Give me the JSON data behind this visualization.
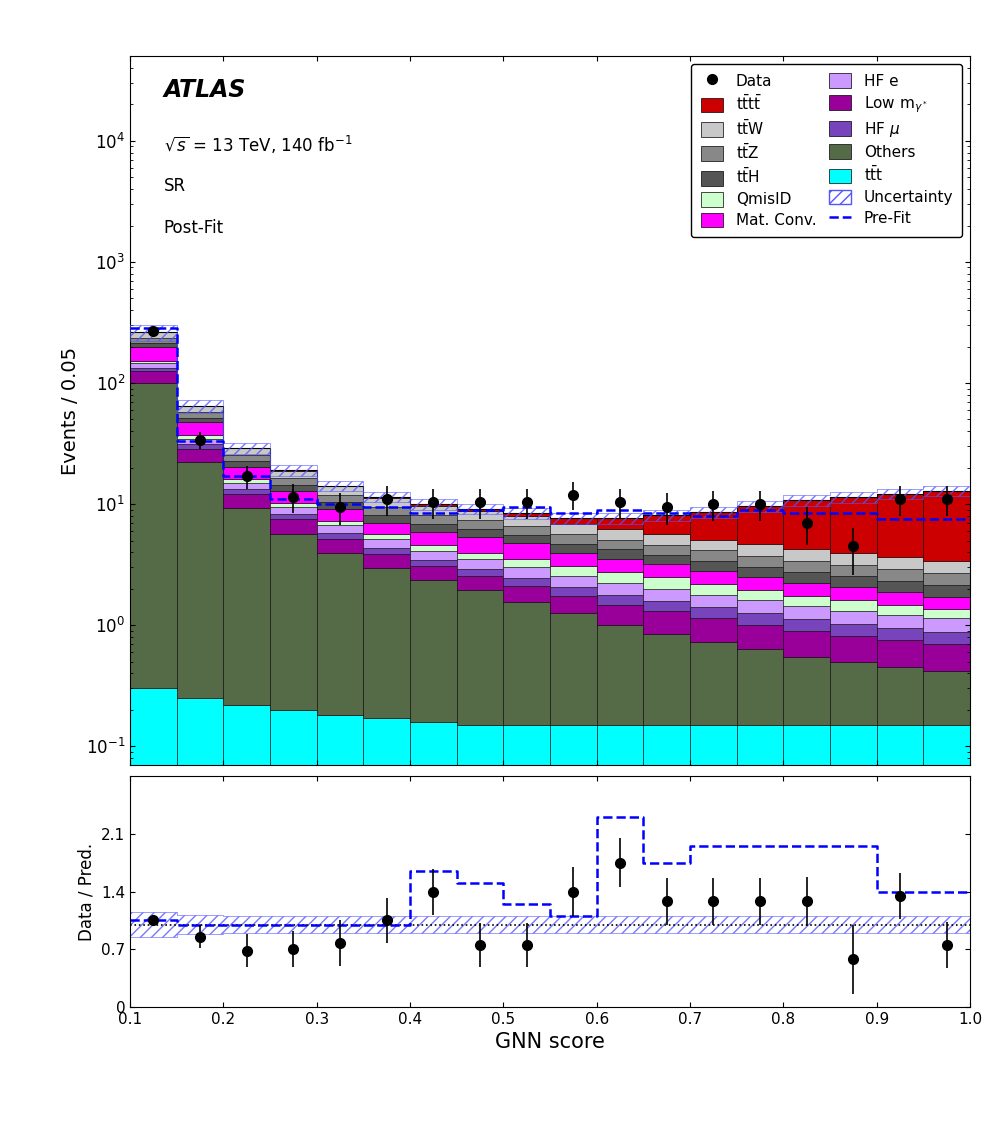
{
  "bin_edges": [
    0.1,
    0.15,
    0.2,
    0.25,
    0.3,
    0.35,
    0.4,
    0.45,
    0.5,
    0.55,
    0.6,
    0.65,
    0.7,
    0.75,
    0.8,
    0.85,
    0.9,
    0.95,
    1.0
  ],
  "components": {
    "tttt": [
      0.3,
      0.25,
      0.2,
      0.18,
      0.18,
      0.2,
      0.3,
      0.4,
      0.5,
      0.8,
      1.5,
      2.5,
      3.5,
      5.0,
      6.5,
      7.5,
      8.5,
      9.5
    ],
    "ttW": [
      30,
      7.0,
      3.5,
      2.5,
      2.0,
      1.8,
      1.6,
      1.4,
      1.3,
      1.2,
      1.1,
      1.0,
      0.95,
      0.9,
      0.85,
      0.8,
      0.75,
      0.7
    ],
    "ttZ": [
      20,
      5.5,
      2.8,
      2.0,
      1.6,
      1.4,
      1.2,
      1.1,
      1.0,
      0.9,
      0.85,
      0.8,
      0.75,
      0.7,
      0.65,
      0.6,
      0.58,
      0.55
    ],
    "ttH": [
      15,
      4.5,
      2.3,
      1.6,
      1.3,
      1.1,
      1.0,
      0.9,
      0.8,
      0.75,
      0.7,
      0.65,
      0.6,
      0.55,
      0.5,
      0.48,
      0.45,
      0.42
    ],
    "QmisID": [
      8,
      2.5,
      1.2,
      0.8,
      0.6,
      0.5,
      0.45,
      0.4,
      0.5,
      0.5,
      0.5,
      0.5,
      0.4,
      0.35,
      0.3,
      0.28,
      0.25,
      0.22
    ],
    "MatConv": [
      45,
      10,
      4.0,
      2.5,
      1.8,
      1.4,
      1.3,
      1.4,
      1.3,
      0.9,
      0.8,
      0.7,
      0.6,
      0.55,
      0.5,
      0.45,
      0.4,
      0.35
    ],
    "HFe": [
      12,
      3.5,
      1.8,
      1.2,
      0.9,
      0.75,
      0.65,
      0.6,
      0.55,
      0.5,
      0.45,
      0.4,
      0.38,
      0.35,
      0.32,
      0.3,
      0.28,
      0.26
    ],
    "LowM": [
      25,
      6.5,
      2.8,
      1.8,
      1.2,
      0.9,
      0.7,
      0.6,
      0.55,
      0.5,
      0.48,
      0.45,
      0.42,
      0.38,
      0.35,
      0.32,
      0.3,
      0.28
    ],
    "HFmu": [
      8,
      2.5,
      1.2,
      0.8,
      0.6,
      0.5,
      0.42,
      0.38,
      0.35,
      0.32,
      0.3,
      0.28,
      0.26,
      0.24,
      0.22,
      0.2,
      0.19,
      0.18
    ],
    "Others": [
      100,
      22,
      9.0,
      5.5,
      3.8,
      2.8,
      2.2,
      1.8,
      1.4,
      1.1,
      0.85,
      0.7,
      0.58,
      0.48,
      0.4,
      0.35,
      0.3,
      0.27
    ],
    "ttt": [
      0.3,
      0.25,
      0.22,
      0.2,
      0.18,
      0.17,
      0.16,
      0.15,
      0.15,
      0.15,
      0.15,
      0.15,
      0.15,
      0.15,
      0.15,
      0.15,
      0.15,
      0.15
    ]
  },
  "colors": {
    "tttt": "#cc0000",
    "ttW": "#c8c8c8",
    "ttZ": "#888888",
    "ttH": "#555555",
    "QmisID": "#ccffcc",
    "MatConv": "#ff00ff",
    "HFe": "#cc99ff",
    "LowM": "#990099",
    "HFmu": "#7744bb",
    "Others": "#556b47",
    "ttt": "#00ffff"
  },
  "data_points": {
    "x": [
      0.125,
      0.175,
      0.225,
      0.275,
      0.325,
      0.375,
      0.425,
      0.475,
      0.525,
      0.575,
      0.625,
      0.675,
      0.725,
      0.775,
      0.825,
      0.875,
      0.925,
      0.975
    ],
    "y": [
      270,
      34,
      17,
      11.5,
      9.5,
      11.0,
      10.5,
      10.5,
      10.5,
      12.0,
      10.5,
      9.5,
      10.0,
      10.0,
      7.0,
      4.5,
      11.0,
      11.0
    ],
    "yerr_lo": [
      18,
      5.5,
      3.8,
      3.1,
      2.8,
      3.0,
      2.9,
      2.9,
      2.9,
      3.1,
      2.9,
      2.8,
      2.8,
      2.8,
      2.4,
      1.9,
      3.0,
      3.0
    ],
    "yerr_hi": [
      18,
      5.5,
      3.8,
      3.1,
      2.8,
      3.0,
      2.9,
      2.9,
      2.9,
      3.1,
      2.9,
      2.8,
      2.8,
      2.8,
      2.4,
      1.9,
      3.0,
      3.0
    ]
  },
  "prefit_y": [
    285,
    33,
    17,
    11,
    10,
    9.5,
    8.5,
    9.0,
    9.5,
    8.5,
    9.0,
    8.5,
    8.0,
    9.0,
    8.5,
    8.5,
    7.5,
    7.5
  ],
  "uncertainty_rel": [
    0.15,
    0.12,
    0.1,
    0.1,
    0.1,
    0.1,
    0.1,
    0.1,
    0.1,
    0.1,
    0.1,
    0.1,
    0.1,
    0.1,
    0.1,
    0.1,
    0.1,
    0.1
  ],
  "ratio_data_y": [
    1.05,
    0.85,
    0.68,
    0.7,
    0.78,
    1.05,
    1.4,
    0.75,
    0.75,
    1.4,
    1.75,
    1.28,
    1.28,
    1.28,
    1.28,
    0.58,
    1.35,
    0.75
  ],
  "ratio_data_yerr": [
    0.07,
    0.14,
    0.2,
    0.22,
    0.28,
    0.27,
    0.28,
    0.27,
    0.27,
    0.3,
    0.3,
    0.28,
    0.28,
    0.28,
    0.3,
    0.42,
    0.28,
    0.28
  ],
  "ratio_prefit_y": [
    1.05,
    1.0,
    1.0,
    1.0,
    1.0,
    1.0,
    1.65,
    1.5,
    1.25,
    1.1,
    2.3,
    1.75,
    1.95,
    1.95,
    1.95,
    1.95,
    1.4,
    1.4
  ],
  "ratio_unc": [
    0.15,
    0.12,
    0.1,
    0.1,
    0.1,
    0.1,
    0.1,
    0.1,
    0.1,
    0.1,
    0.1,
    0.1,
    0.1,
    0.1,
    0.1,
    0.1,
    0.1,
    0.1
  ],
  "atlas_label": "ATLAS",
  "info_lines": [
    "√s = 13 TeV, 140 fb⁻¹",
    "SR",
    "Post-Fit"
  ],
  "ylabel_main": "Events / 0.05",
  "ylabel_ratio": "Data / Pred.",
  "xlabel": "GNN score",
  "ylim_main": [
    0.07,
    50000
  ],
  "ylim_ratio": [
    0,
    2.8
  ],
  "ratio_yticks": [
    0,
    0.7,
    1.4,
    2.1
  ],
  "ratio_yticklabels": [
    "0",
    "0.7",
    "1.4",
    "2.1"
  ],
  "xticks": [
    0.1,
    0.2,
    0.3,
    0.4,
    0.5,
    0.6,
    0.7,
    0.8,
    0.9,
    1.0
  ]
}
